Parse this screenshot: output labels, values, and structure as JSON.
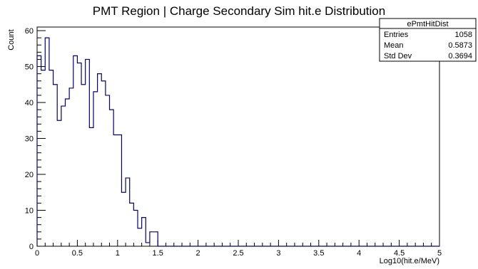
{
  "chart_data": {
    "type": "histogram",
    "title": "PMT Region | Charge Secondary Sim hit.e Distribution",
    "xlabel": "Log10(hit.e/MeV)",
    "ylabel": "Count",
    "xlim": [
      0,
      5
    ],
    "ylim": [
      0,
      61
    ],
    "bin_width": 0.05,
    "x_ticks": [
      "0",
      "0.5",
      "1",
      "1.5",
      "2",
      "2.5",
      "3",
      "3.5",
      "4",
      "4.5",
      "5"
    ],
    "y_ticks": [
      "0",
      "10",
      "20",
      "30",
      "40",
      "50",
      "60"
    ],
    "bins_start": 0,
    "counts": [
      53,
      49,
      58,
      49,
      45,
      35,
      39,
      41,
      44,
      53,
      51,
      45,
      52,
      33,
      43,
      48,
      46,
      42,
      38,
      31,
      31,
      15,
      19,
      12,
      10,
      5,
      8,
      1,
      4,
      4,
      0,
      0,
      0,
      0,
      0,
      0,
      0,
      0,
      0,
      0,
      0,
      0,
      0,
      0,
      0,
      0,
      0,
      0,
      0,
      0,
      0,
      0,
      0,
      0,
      0,
      0,
      0,
      0,
      0,
      0,
      0,
      0,
      0,
      0,
      0,
      0,
      0,
      0,
      0,
      0,
      0,
      0,
      0,
      0,
      0,
      0,
      0,
      0,
      0,
      0,
      0,
      0,
      0,
      0,
      0,
      0,
      0,
      0,
      0,
      0,
      0,
      0,
      0,
      0,
      0,
      0,
      0,
      0,
      0,
      0
    ],
    "stats_box": {
      "name": "ePmtHitDist",
      "rows": [
        {
          "label": "Entries",
          "value": "1058"
        },
        {
          "label": "Mean",
          "value": "0.5873"
        },
        {
          "label": "Std Dev",
          "value": "0.3694"
        }
      ]
    },
    "line_color": "#000080",
    "grid": false,
    "legend_position": "top-right"
  }
}
